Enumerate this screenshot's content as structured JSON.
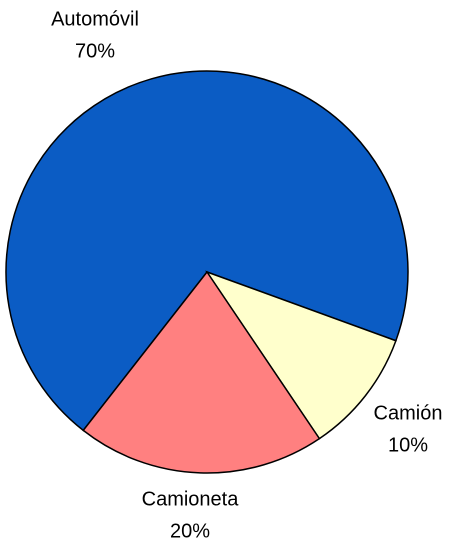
{
  "chart_data": {
    "type": "pie",
    "categories": [
      "Automóvil",
      "Camión",
      "Camioneta"
    ],
    "values": [
      70,
      10,
      20
    ],
    "value_labels": [
      "70%",
      "10%",
      "20%"
    ],
    "colors": [
      "#0b5cc4",
      "#ffffcc",
      "#ff8080"
    ]
  }
}
